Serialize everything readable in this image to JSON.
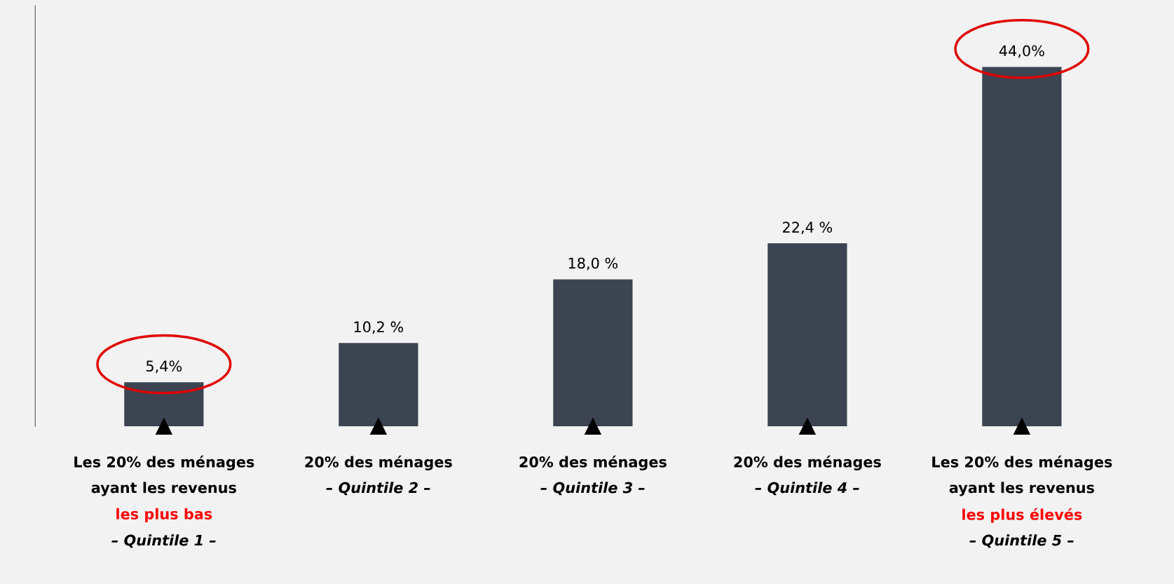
{
  "chart_data": {
    "type": "bar",
    "categories": [
      "Les 20% des ménages\nayant les revenus\nles plus bas\n– Quintile 1 –",
      "20% des ménages\n– Quintile 2 –",
      "20% des ménages\n– Quintile 3 –",
      "20% des ménages\n– Quintile 4 –",
      "Les 20% des ménages\nayant les revenus\nles plus élevés\n– Quintile 5 –"
    ],
    "values": [
      5.4,
      10.2,
      18.0,
      22.4,
      44.0
    ],
    "value_labels": [
      "5,4%",
      "10,2 %",
      "18,0 %",
      "22,4 %",
      "44,0%"
    ],
    "color": "#3c4452"
  }
}
